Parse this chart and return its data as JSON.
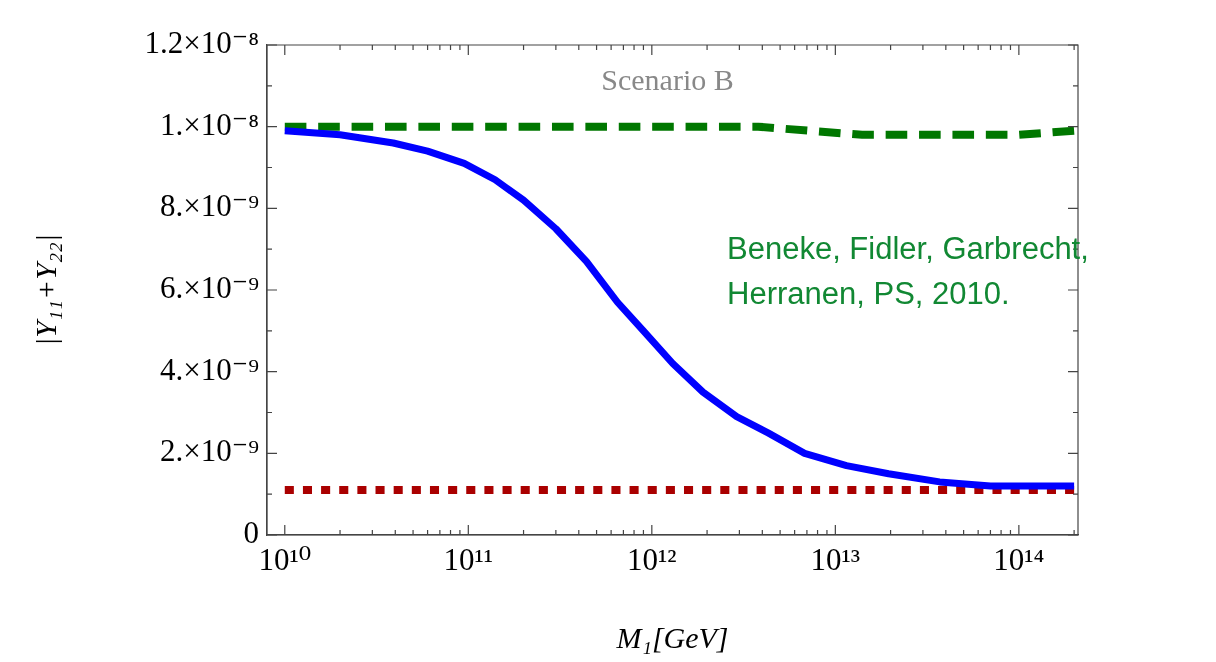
{
  "chart_data": {
    "type": "line",
    "title": "Scenario B",
    "xlabel": "M₁[GeV]",
    "ylabel": "|Y₁₁+Y₂₂|",
    "log": "x",
    "grid": false,
    "legend": false,
    "marker": "none",
    "annotations": [
      "Beneke, Fidler, Garbrecht, Herranen, PS, 2010."
    ],
    "xlim": [
      8000000000.0,
      210000000000000.0
    ],
    "xticks": [
      {
        "value": 10000000000.0,
        "label": "10¹⁰"
      },
      {
        "value": 20000000000.0,
        "label": null
      },
      {
        "value": 30000000000.0,
        "label": null
      },
      {
        "value": 40000000000.0,
        "label": null
      },
      {
        "value": 50000000000.0,
        "label": null
      },
      {
        "value": 60000000000.0,
        "label": null
      },
      {
        "value": 70000000000.0,
        "label": null
      },
      {
        "value": 80000000000.0,
        "label": null
      },
      {
        "value": 90000000000.0,
        "label": null
      },
      {
        "value": 100000000000.0,
        "label": "10¹¹"
      },
      {
        "value": 200000000000.0,
        "label": null
      },
      {
        "value": 300000000000.0,
        "label": null
      },
      {
        "value": 400000000000.0,
        "label": null
      },
      {
        "value": 500000000000.0,
        "label": null
      },
      {
        "value": 600000000000.0,
        "label": null
      },
      {
        "value": 700000000000.0,
        "label": null
      },
      {
        "value": 800000000000.0,
        "label": null
      },
      {
        "value": 900000000000.0,
        "label": null
      },
      {
        "value": 1000000000000.0,
        "label": "10¹²"
      },
      {
        "value": 2000000000000.0,
        "label": null
      },
      {
        "value": 3000000000000.0,
        "label": null
      },
      {
        "value": 4000000000000.0,
        "label": null
      },
      {
        "value": 5000000000000.0,
        "label": null
      },
      {
        "value": 6000000000000.0,
        "label": null
      },
      {
        "value": 7000000000000.0,
        "label": null
      },
      {
        "value": 8000000000000.0,
        "label": null
      },
      {
        "value": 9000000000000.0,
        "label": null
      },
      {
        "value": 10000000000000.0,
        "label": "10¹³"
      },
      {
        "value": 20000000000000.0,
        "label": null
      },
      {
        "value": 30000000000000.0,
        "label": null
      },
      {
        "value": 40000000000000.0,
        "label": null
      },
      {
        "value": 50000000000000.0,
        "label": null
      },
      {
        "value": 60000000000000.0,
        "label": null
      },
      {
        "value": 70000000000000.0,
        "label": null
      },
      {
        "value": 80000000000000.0,
        "label": null
      },
      {
        "value": 90000000000000.0,
        "label": null
      },
      {
        "value": 100000000000000.0,
        "label": "10¹⁴"
      },
      {
        "value": 200000000000000.0,
        "label": null
      }
    ],
    "ylim": [
      0,
      1.2e-08
    ],
    "yticks": [
      {
        "value": 0,
        "label": "0"
      },
      {
        "value": 1e-09,
        "label": null
      },
      {
        "value": 2e-09,
        "label": "2.×10⁻⁹"
      },
      {
        "value": 3e-09,
        "label": null
      },
      {
        "value": 4e-09,
        "label": "4.×10⁻⁹"
      },
      {
        "value": 5e-09,
        "label": null
      },
      {
        "value": 6e-09,
        "label": "6.×10⁻⁹"
      },
      {
        "value": 7e-09,
        "label": null
      },
      {
        "value": 8e-09,
        "label": "8.×10⁻⁹"
      },
      {
        "value": 9e-09,
        "label": null
      },
      {
        "value": 1e-08,
        "label": "1.×10⁻⁸"
      },
      {
        "value": 1.1e-08,
        "label": null
      },
      {
        "value": 1.2e-08,
        "label": "1.2×10⁻⁸"
      }
    ],
    "series": [
      {
        "color": "#0000ff",
        "line_style": "solid",
        "x": [
          10000000000.0,
          20000000000.0,
          39000000000.0,
          60000000000.0,
          95000000000.0,
          140000000000.0,
          200000000000.0,
          300000000000.0,
          440000000000.0,
          650000000000.0,
          900000000000.0,
          1300000000000.0,
          1900000000000.0,
          2900000000000.0,
          4300000000000.0,
          6800000000000.0,
          11500000000000.0,
          19500000000000.0,
          37000000000000.0,
          70000000000000.0,
          180000000000000.0,
          200000000000000.0
        ],
        "values": [
          9.9e-09,
          9.8e-09,
          9.6e-09,
          9.4e-09,
          9.1e-09,
          8.7e-09,
          8.2e-09,
          7.5e-09,
          6.7e-09,
          5.7e-09,
          5e-09,
          4.2e-09,
          3.5e-09,
          2.9e-09,
          2.5e-09,
          2e-09,
          1.7e-09,
          1.5e-09,
          1.3e-09,
          1.2e-09,
          1.2e-09,
          1.2e-09
        ]
      },
      {
        "color": "#007700",
        "line_style": "dashed",
        "x": [
          10000000000.0,
          100000000000.0,
          1000000000000.0,
          2000000000000.0,
          3800000000000.0,
          7200000000000.0,
          14000000000000.0,
          27000000000000.0,
          51000000000000.0,
          100000000000000.0,
          200000000000000.0
        ],
        "values": [
          1e-08,
          1e-08,
          1e-08,
          1e-08,
          1e-08,
          9.9e-09,
          9.8e-09,
          9.8e-09,
          9.8e-09,
          9.8e-09,
          9.9e-09
        ]
      },
      {
        "color": "#aa0000",
        "line_style": "dotted",
        "x": [
          10000000000.0,
          200000000000000.0
        ],
        "values": [
          1.1e-09,
          1.1e-09
        ]
      }
    ]
  }
}
